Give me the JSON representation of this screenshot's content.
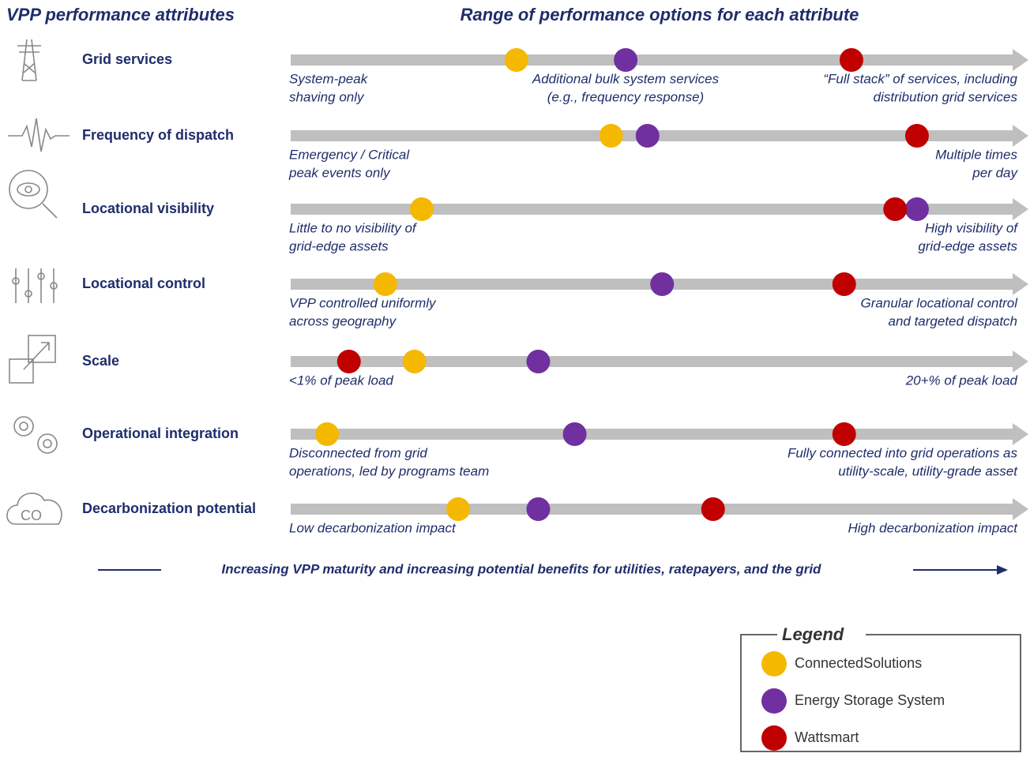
{
  "header": {
    "left": "VPP performance attributes",
    "right": "Range of performance options for each attribute"
  },
  "attributes": [
    {
      "name": "Grid services",
      "low": [
        "System-peak",
        "shaving only"
      ],
      "middle": [
        "Additional bulk system services",
        "(e.g., frequency response)"
      ],
      "high": [
        "“Full stack” of services, including",
        "distribution grid services"
      ],
      "scores": [
        31,
        46,
        77
      ]
    },
    {
      "name": "Frequency of dispatch",
      "low": [
        "Emergency / Critical",
        "peak events only"
      ],
      "high": [
        "Multiple times",
        "per day"
      ],
      "scores": [
        44,
        49,
        86
      ]
    },
    {
      "name": "Locational visibility",
      "low": [
        "Little to no visibility of",
        "grid-edge assets"
      ],
      "high": [
        "High visibility of",
        "grid-edge assets"
      ],
      "scores": [
        18,
        86,
        83
      ]
    },
    {
      "name": "Locational control",
      "low": [
        "VPP controlled uniformly",
        "across geography"
      ],
      "high": [
        "Granular locational control",
        "and targeted dispatch"
      ],
      "scores": [
        13,
        51,
        76
      ]
    },
    {
      "name": "Scale",
      "low": [
        "<1% of peak load"
      ],
      "high": [
        "20+% of peak load"
      ],
      "scores": [
        17,
        34,
        8
      ]
    },
    {
      "name": "Operational integration",
      "low": [
        "Disconnected from grid",
        "operations, led by programs team"
      ],
      "high": [
        "Fully connected into grid operations as",
        "utility-scale, utility-grade asset"
      ],
      "scores": [
        5,
        39,
        76
      ]
    },
    {
      "name": "Decarbonization potential",
      "low": [
        "Low decarbonization impact"
      ],
      "high": [
        "High decarbonization impact"
      ],
      "scores": [
        23,
        34,
        58
      ]
    }
  ],
  "scale": [
    0,
    100
  ],
  "footer": "Increasing VPP maturity and increasing potential benefits for utilities, ratepayers, and the grid",
  "legend": {
    "title": "Legend",
    "items": [
      {
        "name": "ConnectedSolutions",
        "color": "#f5b800"
      },
      {
        "name": "Energy Storage System",
        "color": "#7030a0"
      },
      {
        "name": "Wattsmart",
        "color": "#c00000"
      }
    ]
  }
}
